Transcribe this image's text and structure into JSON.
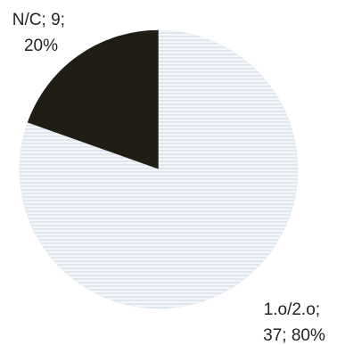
{
  "chart_data": {
    "type": "pie",
    "slices": [
      {
        "name": "N/C",
        "value": 9,
        "percent": 20,
        "label_line1": "N/C; 9;",
        "label_line2": "20%",
        "color": "#1f1d14",
        "pattern": "solid"
      },
      {
        "name": "1.o/2.o",
        "value": 37,
        "percent": 80,
        "label_line1": "1.o/2.o;",
        "label_line2": "37; 80%",
        "color": "#f4f6f9",
        "pattern": "horizontal-lines",
        "pattern_line_color": "#c9d5e3"
      }
    ],
    "start_angle_deg": 0,
    "direction": "counterclockwise",
    "legend": "none",
    "title": ""
  }
}
